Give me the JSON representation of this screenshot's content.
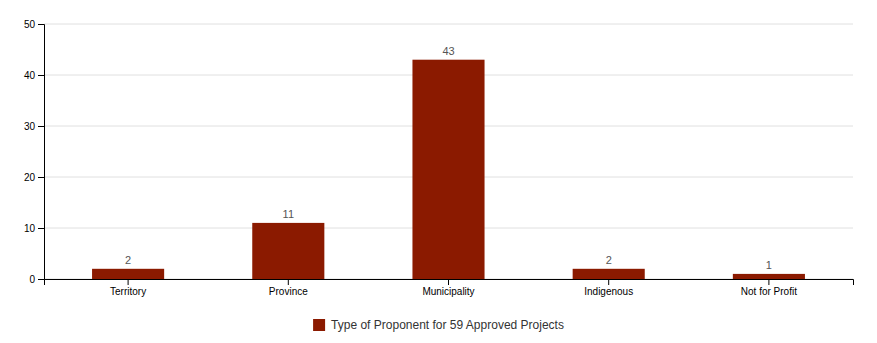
{
  "chart_data": {
    "type": "bar",
    "categories": [
      "Territory",
      "Province",
      "Municipality",
      "Indigenous",
      "Not for Profit"
    ],
    "series": [
      {
        "name": "Type of Proponent for 59 Approved Projects",
        "color": "#8B1A00",
        "values": [
          2,
          11,
          43,
          2,
          1
        ]
      }
    ],
    "ylim": [
      0,
      50
    ],
    "yticks": [
      0,
      10,
      20,
      30,
      40,
      50
    ],
    "grid": true,
    "data_labels": true,
    "legend": "bottom"
  }
}
